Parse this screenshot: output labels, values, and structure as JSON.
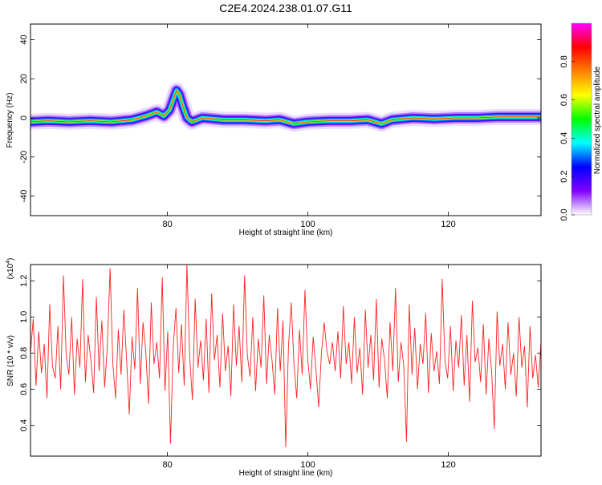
{
  "title": "C2E4.2024.238.01.07.G11",
  "chart_data": [
    {
      "type": "heatmap",
      "title": "C2E4.2024.238.01.07.G11",
      "xlabel": "Height of straight line (km)",
      "ylabel": "Frequency (Hz)",
      "xlim": [
        60.5,
        133.2
      ],
      "ylim": [
        -50,
        48
      ],
      "xticks": [
        "80",
        "100",
        "120"
      ],
      "yticks": [
        "40",
        "20",
        "0",
        "-20",
        "-40"
      ],
      "colorbar": {
        "label": "Normalized spectral amplitude",
        "range": [
          0,
          1
        ],
        "ticks": [
          "0.0",
          "0.2",
          "0.4",
          "0.6",
          "0.8"
        ],
        "colors": [
          "#ffffff",
          "#7f00ff",
          "#0000ff",
          "#00ffff",
          "#00ff00",
          "#ffff00",
          "#ff8000",
          "#ff0000",
          "#ff00ff"
        ]
      },
      "ridge": {
        "x": [
          60.5,
          63,
          66,
          69,
          72,
          75,
          77,
          78.5,
          79.5,
          80.3,
          80.9,
          81.3,
          81.7,
          82.2,
          82.8,
          83.5,
          85,
          88,
          91,
          94,
          96,
          98,
          100,
          103,
          106,
          108.5,
          109.5,
          110.5,
          112,
          115,
          118,
          121,
          124,
          127,
          130,
          133.2
        ],
        "y": [
          -2,
          -1.5,
          -2,
          -1.5,
          -2,
          -1,
          1,
          3,
          1,
          4,
          10,
          14,
          12,
          6,
          0,
          -2,
          0,
          -1,
          -1,
          -1.5,
          -1,
          -3,
          -2,
          -1.5,
          -1.5,
          -1,
          -2,
          -3,
          -1,
          0,
          -0.5,
          0,
          0,
          0.5,
          0.5,
          0.5
        ]
      }
    },
    {
      "type": "line",
      "xlabel": "Height of straight line (km)",
      "ylabel": "SNR (10 * v/v)",
      "scale_label": "(x10",
      "scale_exp": "4",
      "xlim": [
        60.5,
        133.2
      ],
      "ylim": [
        0.23,
        1.29
      ],
      "xticks": [
        "80",
        "100",
        "120"
      ],
      "yticks": [
        "0.4",
        "0.6",
        "0.8",
        "1.0",
        "1.2"
      ],
      "color": "#ff2222",
      "series": [
        {
          "x_start": 60.5,
          "x_end": 133.2,
          "values": [
            0.8,
            0.99,
            0.62,
            0.92,
            0.69,
            0.85,
            0.55,
            1.07,
            0.73,
            0.66,
            0.95,
            0.6,
            1.23,
            0.79,
            0.68,
            1.0,
            0.57,
            0.88,
            0.72,
            1.21,
            0.64,
            0.9,
            0.76,
            0.58,
            1.11,
            0.7,
            0.98,
            0.61,
            0.84,
            1.27,
            0.74,
            0.55,
            0.93,
            0.68,
            1.04,
            0.77,
            0.46,
            0.89,
            0.71,
            1.16,
            0.63,
            0.97,
            0.81,
            0.52,
            1.08,
            0.74,
            0.86,
            0.66,
            1.22,
            0.59,
            0.92,
            0.3,
            0.83,
            1.05,
            0.69,
            0.96,
            0.62,
            1.29,
            0.78,
            0.54,
            1.1,
            0.72,
            0.87,
            0.65,
            0.99,
            0.58,
            1.13,
            0.76,
            0.9,
            0.61,
            1.02,
            0.7,
            0.84,
            0.56,
            1.07,
            0.73,
            0.95,
            0.64,
            1.23,
            0.79,
            0.67,
            1.0,
            0.59,
            0.88,
            0.72,
            1.12,
            0.63,
            0.9,
            0.76,
            0.57,
            1.05,
            0.7,
            0.98,
            0.28,
            0.84,
            1.08,
            0.74,
            0.55,
            0.93,
            0.68,
            1.15,
            0.77,
            0.6,
            0.89,
            0.71,
            0.5,
            0.8,
            0.97,
            0.81,
            0.74,
            0.86,
            0.7,
            0.92,
            0.66,
            1.06,
            0.74,
            0.86,
            0.63,
            1.0,
            0.69,
            0.83,
            0.57,
            1.04,
            0.72,
            0.9,
            0.65,
            1.1,
            0.61,
            0.88,
            0.76,
            0.55,
            0.97,
            0.7,
            1.16,
            0.64,
            0.86,
            0.73,
            0.31,
            1.07,
            0.68,
            0.94,
            0.6,
            0.85,
            0.74,
            1.02,
            0.58,
            0.91,
            0.7,
            0.81,
            0.63,
            1.21,
            0.76,
            0.66,
            0.95,
            0.59,
            0.87,
            0.72,
            1.01,
            0.62,
            0.9,
            0.53,
            1.09,
            0.75,
            0.83,
            0.64,
            0.96,
            0.57,
            0.88,
            0.7,
            0.38,
            1.03,
            0.73,
            0.85,
            0.6,
            0.97,
            0.68,
            0.8,
            0.56,
            1.0,
            0.72,
            0.84,
            0.5,
            0.95,
            0.66,
            0.79,
            0.61,
            0.86
          ]
        }
      ]
    }
  ]
}
